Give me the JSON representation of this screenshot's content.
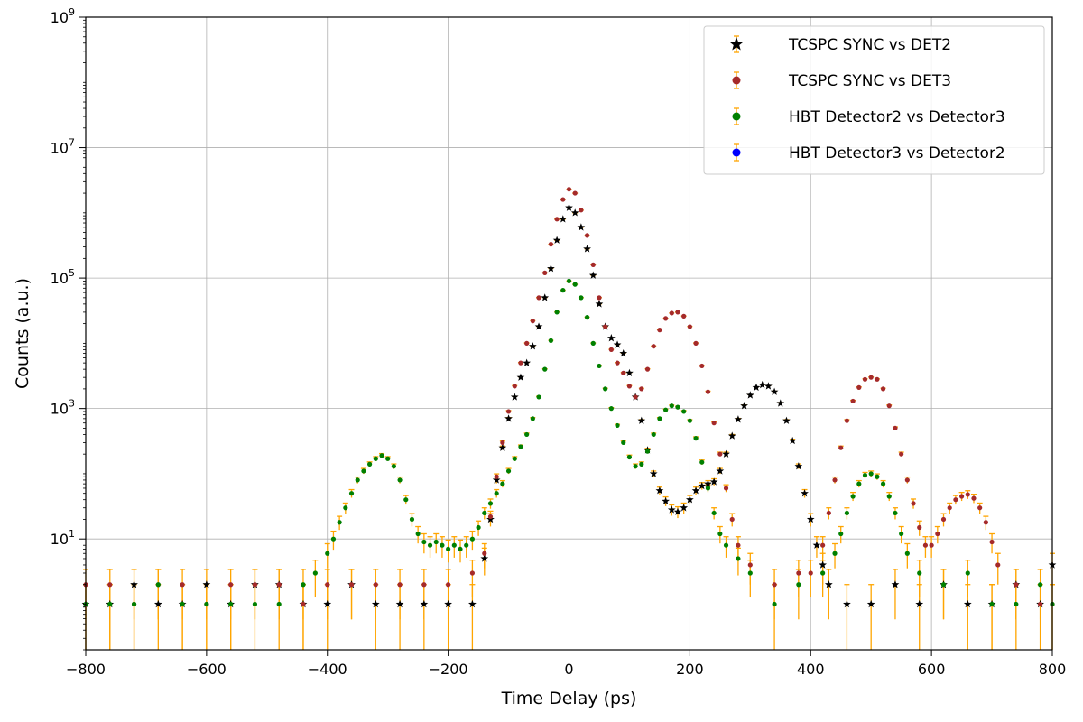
{
  "chart_data": {
    "type": "scatter",
    "title": "",
    "xlabel": "Time Delay (ps)",
    "ylabel": "Counts (a.u.)",
    "xlim": [
      -800,
      800
    ],
    "ylim": [
      0.2,
      1000000000
    ],
    "yscale": "log",
    "grid": true,
    "legend_position": "top-right",
    "x_ticks": [
      -800,
      -600,
      -400,
      -200,
      0,
      200,
      400,
      600,
      800
    ],
    "x_tick_labels": [
      "−800",
      "−600",
      "−400",
      "−200",
      "0",
      "200",
      "400",
      "600",
      "800"
    ],
    "y_ticks": [
      {
        "value": 10,
        "base": "10",
        "exp": "1"
      },
      {
        "value": 1000,
        "base": "10",
        "exp": "3"
      },
      {
        "value": 100000,
        "base": "10",
        "exp": "5"
      },
      {
        "value": 10000000,
        "base": "10",
        "exp": "7"
      },
      {
        "value": 1000000000,
        "base": "10",
        "exp": "9"
      }
    ],
    "errorbar_color": "#ffa500",
    "series": [
      {
        "name": "TCSPC SYNC vs DET2",
        "color": "#000000",
        "marker": "star",
        "points": [
          [
            -800,
            1
          ],
          [
            -760,
            1
          ],
          [
            -720,
            2
          ],
          [
            -680,
            1
          ],
          [
            -640,
            1
          ],
          [
            -600,
            2
          ],
          [
            -560,
            1
          ],
          [
            -520,
            2
          ],
          [
            -480,
            2
          ],
          [
            -440,
            1
          ],
          [
            -400,
            1
          ],
          [
            -360,
            2
          ],
          [
            -320,
            1
          ],
          [
            -280,
            1
          ],
          [
            -240,
            1
          ],
          [
            -200,
            1
          ],
          [
            -160,
            1
          ],
          [
            -140,
            5
          ],
          [
            -130,
            20
          ],
          [
            -120,
            80
          ],
          [
            -110,
            250
          ],
          [
            -100,
            700
          ],
          [
            -90,
            1500
          ],
          [
            -80,
            3000
          ],
          [
            -70,
            5000
          ],
          [
            -60,
            9000
          ],
          [
            -50,
            18000
          ],
          [
            -40,
            50000
          ],
          [
            -30,
            140000
          ],
          [
            -20,
            380000
          ],
          [
            -10,
            800000
          ],
          [
            0,
            1200000
          ],
          [
            10,
            1000000
          ],
          [
            20,
            600000
          ],
          [
            30,
            280000
          ],
          [
            40,
            110000
          ],
          [
            50,
            40000
          ],
          [
            60,
            18000
          ],
          [
            70,
            12000
          ],
          [
            80,
            9500
          ],
          [
            90,
            7000
          ],
          [
            100,
            3500
          ],
          [
            110,
            1500
          ],
          [
            120,
            650
          ],
          [
            130,
            230
          ],
          [
            140,
            100
          ],
          [
            150,
            55
          ],
          [
            160,
            38
          ],
          [
            170,
            28
          ],
          [
            180,
            26
          ],
          [
            190,
            30
          ],
          [
            200,
            40
          ],
          [
            210,
            55
          ],
          [
            220,
            65
          ],
          [
            230,
            70
          ],
          [
            240,
            75
          ],
          [
            250,
            110
          ],
          [
            260,
            200
          ],
          [
            270,
            380
          ],
          [
            280,
            680
          ],
          [
            290,
            1100
          ],
          [
            300,
            1600
          ],
          [
            310,
            2100
          ],
          [
            320,
            2300
          ],
          [
            330,
            2200
          ],
          [
            340,
            1800
          ],
          [
            350,
            1200
          ],
          [
            360,
            650
          ],
          [
            370,
            320
          ],
          [
            380,
            130
          ],
          [
            390,
            50
          ],
          [
            400,
            20
          ],
          [
            410,
            8
          ],
          [
            420,
            4
          ],
          [
            430,
            2
          ],
          [
            460,
            1
          ],
          [
            500,
            1
          ],
          [
            540,
            2
          ],
          [
            580,
            1
          ],
          [
            620,
            2
          ],
          [
            660,
            1
          ],
          [
            700,
            1
          ],
          [
            740,
            2
          ],
          [
            780,
            1
          ],
          [
            800,
            4
          ]
        ]
      },
      {
        "name": "TCSPC SYNC vs DET3",
        "color": "#a52a2a",
        "marker": "circle",
        "points": [
          [
            -800,
            2
          ],
          [
            -760,
            2
          ],
          [
            -720,
            1
          ],
          [
            -680,
            2
          ],
          [
            -640,
            2
          ],
          [
            -600,
            1
          ],
          [
            -560,
            2
          ],
          [
            -520,
            2
          ],
          [
            -480,
            2
          ],
          [
            -440,
            1
          ],
          [
            -400,
            2
          ],
          [
            -360,
            2
          ],
          [
            -320,
            2
          ],
          [
            -280,
            2
          ],
          [
            -240,
            2
          ],
          [
            -200,
            2
          ],
          [
            -160,
            3
          ],
          [
            -140,
            6
          ],
          [
            -130,
            22
          ],
          [
            -120,
            90
          ],
          [
            -110,
            300
          ],
          [
            -100,
            900
          ],
          [
            -90,
            2200
          ],
          [
            -80,
            5000
          ],
          [
            -70,
            10000
          ],
          [
            -60,
            22000
          ],
          [
            -50,
            50000
          ],
          [
            -40,
            120000
          ],
          [
            -30,
            330000
          ],
          [
            -20,
            800000
          ],
          [
            -10,
            1600000
          ],
          [
            0,
            2300000
          ],
          [
            10,
            2000000
          ],
          [
            20,
            1100000
          ],
          [
            30,
            450000
          ],
          [
            40,
            160000
          ],
          [
            50,
            50000
          ],
          [
            60,
            18000
          ],
          [
            70,
            8000
          ],
          [
            80,
            5000
          ],
          [
            90,
            3500
          ],
          [
            100,
            2200
          ],
          [
            110,
            1500
          ],
          [
            120,
            2000
          ],
          [
            130,
            4000
          ],
          [
            140,
            9000
          ],
          [
            150,
            16000
          ],
          [
            160,
            24000
          ],
          [
            170,
            29000
          ],
          [
            180,
            30000
          ],
          [
            190,
            26000
          ],
          [
            200,
            18000
          ],
          [
            210,
            10000
          ],
          [
            220,
            4500
          ],
          [
            230,
            1800
          ],
          [
            240,
            600
          ],
          [
            250,
            200
          ],
          [
            260,
            60
          ],
          [
            270,
            20
          ],
          [
            280,
            8
          ],
          [
            300,
            4
          ],
          [
            340,
            2
          ],
          [
            380,
            3
          ],
          [
            400,
            3
          ],
          [
            420,
            8
          ],
          [
            430,
            25
          ],
          [
            440,
            80
          ],
          [
            450,
            250
          ],
          [
            460,
            650
          ],
          [
            470,
            1300
          ],
          [
            480,
            2100
          ],
          [
            490,
            2800
          ],
          [
            500,
            3000
          ],
          [
            510,
            2800
          ],
          [
            520,
            2000
          ],
          [
            530,
            1100
          ],
          [
            540,
            500
          ],
          [
            550,
            200
          ],
          [
            560,
            80
          ],
          [
            570,
            35
          ],
          [
            580,
            15
          ],
          [
            590,
            8
          ],
          [
            600,
            8
          ],
          [
            610,
            12
          ],
          [
            620,
            20
          ],
          [
            630,
            30
          ],
          [
            640,
            40
          ],
          [
            650,
            45
          ],
          [
            660,
            48
          ],
          [
            670,
            42
          ],
          [
            680,
            30
          ],
          [
            690,
            18
          ],
          [
            700,
            9
          ],
          [
            710,
            4
          ],
          [
            740,
            2
          ],
          [
            780,
            1
          ],
          [
            800,
            1
          ]
        ]
      },
      {
        "name": "HBT Detector2 vs Detector3",
        "color": "#008000",
        "marker": "circle",
        "points": [
          [
            -800,
            1
          ],
          [
            -760,
            1
          ],
          [
            -720,
            1
          ],
          [
            -680,
            2
          ],
          [
            -640,
            1
          ],
          [
            -600,
            1
          ],
          [
            -560,
            1
          ],
          [
            -520,
            1
          ],
          [
            -480,
            1
          ],
          [
            -440,
            2
          ],
          [
            -420,
            3
          ],
          [
            -400,
            6
          ],
          [
            -390,
            10
          ],
          [
            -380,
            18
          ],
          [
            -370,
            30
          ],
          [
            -360,
            50
          ],
          [
            -350,
            80
          ],
          [
            -340,
            110
          ],
          [
            -330,
            140
          ],
          [
            -320,
            170
          ],
          [
            -310,
            190
          ],
          [
            -300,
            170
          ],
          [
            -290,
            130
          ],
          [
            -280,
            80
          ],
          [
            -270,
            40
          ],
          [
            -260,
            20
          ],
          [
            -250,
            12
          ],
          [
            -240,
            9
          ],
          [
            -230,
            8
          ],
          [
            -220,
            9
          ],
          [
            -210,
            8
          ],
          [
            -200,
            7
          ],
          [
            -190,
            8
          ],
          [
            -180,
            7
          ],
          [
            -170,
            8
          ],
          [
            -160,
            10
          ],
          [
            -150,
            15
          ],
          [
            -140,
            25
          ],
          [
            -130,
            35
          ],
          [
            -120,
            50
          ],
          [
            -110,
            70
          ],
          [
            -100,
            110
          ],
          [
            -90,
            170
          ],
          [
            -80,
            260
          ],
          [
            -70,
            400
          ],
          [
            -60,
            700
          ],
          [
            -50,
            1500
          ],
          [
            -40,
            4000
          ],
          [
            -30,
            11000
          ],
          [
            -20,
            30000
          ],
          [
            -10,
            65000
          ],
          [
            0,
            90000
          ],
          [
            10,
            80000
          ],
          [
            20,
            50000
          ],
          [
            30,
            25000
          ],
          [
            40,
            10000
          ],
          [
            50,
            4500
          ],
          [
            60,
            2000
          ],
          [
            70,
            1000
          ],
          [
            80,
            550
          ],
          [
            90,
            300
          ],
          [
            100,
            180
          ],
          [
            110,
            130
          ],
          [
            120,
            140
          ],
          [
            130,
            220
          ],
          [
            140,
            400
          ],
          [
            150,
            700
          ],
          [
            160,
            950
          ],
          [
            170,
            1100
          ],
          [
            180,
            1050
          ],
          [
            190,
            900
          ],
          [
            200,
            650
          ],
          [
            210,
            350
          ],
          [
            220,
            150
          ],
          [
            230,
            60
          ],
          [
            240,
            25
          ],
          [
            250,
            12
          ],
          [
            260,
            8
          ],
          [
            280,
            5
          ],
          [
            300,
            3
          ],
          [
            340,
            1
          ],
          [
            380,
            2
          ],
          [
            420,
            3
          ],
          [
            440,
            6
          ],
          [
            450,
            12
          ],
          [
            460,
            25
          ],
          [
            470,
            45
          ],
          [
            480,
            70
          ],
          [
            490,
            95
          ],
          [
            500,
            100
          ],
          [
            510,
            90
          ],
          [
            520,
            70
          ],
          [
            530,
            45
          ],
          [
            540,
            25
          ],
          [
            550,
            12
          ],
          [
            560,
            6
          ],
          [
            580,
            3
          ],
          [
            620,
            2
          ],
          [
            660,
            3
          ],
          [
            700,
            1
          ],
          [
            740,
            1
          ],
          [
            780,
            2
          ],
          [
            800,
            1
          ]
        ]
      },
      {
        "name": "HBT Detector3 vs Detector2",
        "color": "#0000ff",
        "marker": "circle",
        "points": []
      }
    ]
  }
}
